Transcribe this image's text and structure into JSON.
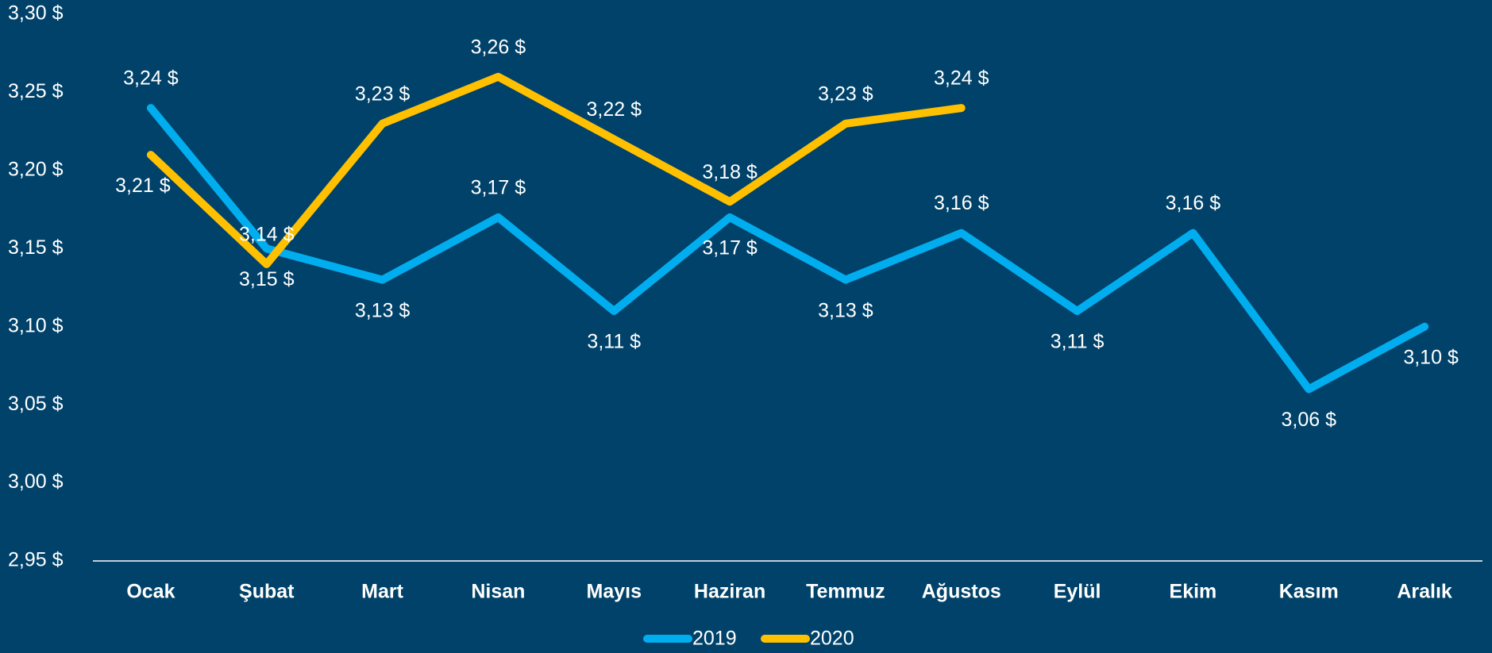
{
  "chart_data": {
    "type": "line",
    "categories": [
      "Ocak",
      "Şubat",
      "Mart",
      "Nisan",
      "Mayıs",
      "Haziran",
      "Temmuz",
      "Ağustos",
      "Eylül",
      "Ekim",
      "Kasım",
      "Aralık"
    ],
    "series": [
      {
        "name": "2019",
        "color": "#00aeef",
        "values": [
          3.24,
          3.15,
          3.13,
          3.17,
          3.11,
          3.17,
          3.13,
          3.16,
          3.11,
          3.16,
          3.06,
          3.1
        ],
        "value_labels": [
          "3,24 $",
          "3,15 $",
          "3,13 $",
          "3,17 $",
          "3,11 $",
          "3,17 $",
          "3,13 $",
          "3,16 $",
          "3,11 $",
          "3,16 $",
          "3,06 $",
          "3,10 $"
        ]
      },
      {
        "name": "2020",
        "color": "#ffc000",
        "values": [
          3.21,
          3.14,
          3.23,
          3.26,
          3.22,
          3.18,
          3.23,
          3.24,
          null,
          null,
          null,
          null
        ],
        "value_labels": [
          "3,21 $",
          "3,14 $",
          "3,23 $",
          "3,26 $",
          "3,22 $",
          "3,18 $",
          "3,23 $",
          "3,24 $",
          null,
          null,
          null,
          null
        ]
      }
    ],
    "ylim": [
      2.95,
      3.3
    ],
    "yticks": [
      {
        "value": 2.95,
        "label": "2,95 $"
      },
      {
        "value": 3.0,
        "label": "3,00 $"
      },
      {
        "value": 3.05,
        "label": "3,05 $"
      },
      {
        "value": 3.1,
        "label": "3,10 $"
      },
      {
        "value": 3.15,
        "label": "3,15 $"
      },
      {
        "value": 3.2,
        "label": "3,20 $"
      },
      {
        "value": 3.25,
        "label": "3,25 $"
      },
      {
        "value": 3.3,
        "label": "3,30 $"
      }
    ],
    "legend": "bottom"
  }
}
